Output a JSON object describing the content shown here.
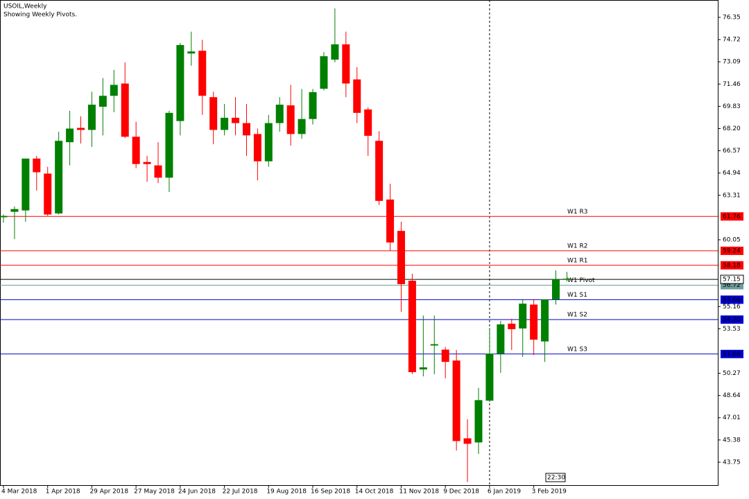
{
  "chart_data": {
    "type": "candlestick",
    "title": "USOIL,Weekly",
    "subtitle": "Showing Weekly Pivots.",
    "categories": [
      "4 Mar 2018",
      null,
      null,
      null,
      "1 Apr 2018",
      null,
      null,
      null,
      "29 Apr 2018",
      null,
      null,
      null,
      "27 May 2018",
      null,
      null,
      null,
      "24 Jun 2018",
      null,
      null,
      null,
      "22 Jul 2018",
      null,
      null,
      null,
      "19 Aug 2018",
      null,
      null,
      null,
      "16 Sep 2018",
      null,
      null,
      null,
      "14 Oct 2018",
      null,
      null,
      null,
      "11 Nov 2018",
      null,
      null,
      null,
      "9 Dec 2018",
      null,
      null,
      null,
      "6 Jan 2019",
      null,
      null,
      null,
      "3 Feb 2019",
      null,
      null,
      null
    ],
    "open": [
      61.7,
      62.1,
      62.2,
      66.0,
      64.9,
      61.98,
      67.2,
      68.25,
      68.1,
      69.8,
      70.6,
      71.5,
      67.6,
      65.75,
      65.5,
      64.6,
      68.75,
      73.7,
      73.9,
      70.5,
      68.1,
      68.99,
      68.6,
      67.8,
      65.8,
      68.6,
      69.9,
      67.8,
      68.9,
      71.12,
      73.25,
      74.37,
      71.8,
      69.6,
      67.3,
      63.0,
      60.7,
      57.05,
      50.55,
      52.3,
      52.0,
      51.2,
      45.5,
      45.2,
      48.26,
      51.7,
      53.9,
      53.55,
      55.3,
      52.6,
      55.68,
      57.15
    ],
    "high": [
      61.9,
      62.5,
      66.0,
      66.2,
      65.4,
      67.97,
      69.5,
      69.1,
      70.9,
      71.9,
      72.5,
      73.05,
      68.7,
      66.2,
      67.2,
      69.5,
      74.47,
      75.3,
      74.7,
      70.9,
      70.0,
      70.5,
      70.0,
      68.2,
      69.2,
      70.5,
      71.4,
      71.1,
      71.1,
      73.8,
      77.0,
      75.3,
      72.7,
      69.75,
      68.0,
      64.16,
      61.37,
      57.56,
      54.5,
      54.5,
      52.2,
      51.97,
      46.9,
      49.2,
      53.6,
      54.1,
      54.26,
      55.7,
      55.7,
      55.68,
      57.8,
      57.7
    ],
    "low": [
      61.3,
      60.1,
      61.37,
      63.65,
      61.8,
      61.9,
      65.5,
      67.1,
      66.85,
      67.7,
      69.4,
      67.5,
      65.3,
      64.3,
      64.2,
      63.55,
      67.7,
      72.8,
      69.2,
      67.05,
      67.7,
      67.7,
      66.2,
      64.4,
      65.4,
      67.97,
      66.95,
      67.45,
      68.5,
      71.0,
      73.05,
      70.5,
      68.6,
      66.2,
      62.6,
      59.24,
      54.77,
      50.2,
      50.04,
      50.2,
      49.9,
      44.6,
      42.3,
      44.35,
      48.16,
      50.3,
      51.97,
      51.47,
      51.6,
      51.1,
      55.3,
      57.0
    ],
    "close": [
      61.8,
      62.3,
      66.0,
      65.0,
      61.9,
      67.3,
      68.2,
      68.1,
      69.95,
      70.6,
      71.4,
      67.6,
      65.6,
      65.6,
      64.6,
      69.35,
      74.32,
      73.85,
      70.6,
      68.1,
      68.99,
      68.6,
      67.7,
      65.8,
      68.6,
      69.95,
      67.8,
      68.9,
      70.87,
      73.5,
      74.37,
      71.5,
      69.35,
      67.67,
      62.9,
      59.85,
      56.8,
      50.35,
      50.7,
      52.4,
      51.1,
      45.3,
      45.1,
      48.3,
      51.7,
      53.85,
      53.5,
      55.37,
      52.73,
      55.68,
      57.15,
      57.2
    ],
    "up_color": "#008000",
    "down_color": "#ff0000",
    "ylim": [
      42.07,
      77.62
    ],
    "yticks": [
      76.35,
      74.72,
      73.09,
      71.46,
      69.83,
      {
        "value": 68.2,
        "label": "68.20"
      },
      66.57,
      64.94,
      63.31,
      60.05,
      55.16,
      53.53,
      50.27,
      48.64,
      47.01,
      45.38,
      43.75
    ],
    "pivots": [
      {
        "name": "W1 R3",
        "value": 61.76,
        "color": "#ff0000"
      },
      {
        "name": "W1 R2",
        "value": 59.24,
        "color": "#ff0000"
      },
      {
        "name": "W1 R1",
        "value": 58.18,
        "color": "#ff0000"
      },
      {
        "name": "W1 Pivot",
        "value": 56.72,
        "color": "#6e9c9c"
      },
      {
        "name": "W1 S1",
        "value": 55.66,
        "color": "#0000cc"
      },
      {
        "name": "W1 S2",
        "value": {
          "value": 54.2,
          "label": "54.20"
        },
        "color": "#0000cc"
      },
      {
        "name": "W1 S3",
        "value": 51.68,
        "color": "#0000cc"
      }
    ],
    "current_price": 57.15,
    "marker_index": 44,
    "time_label": "22:30"
  }
}
